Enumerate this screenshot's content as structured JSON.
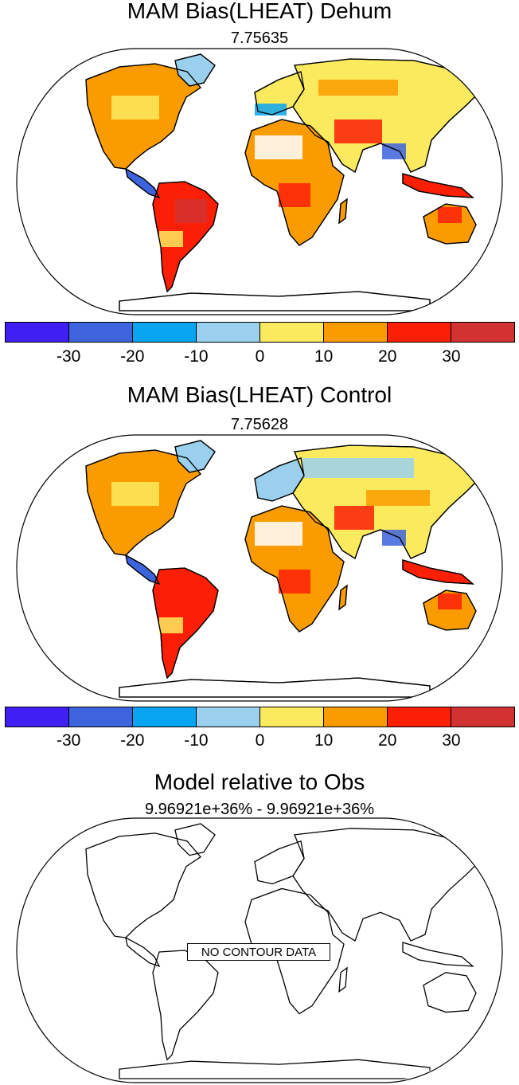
{
  "panels": [
    {
      "title": "MAM Bias(LHEAT) Dehum",
      "subtitle": "7.75635"
    },
    {
      "title": "MAM Bias(LHEAT) Control",
      "subtitle": "7.75628"
    },
    {
      "title": "Model relative to Obs",
      "subtitle": "9.96921e+36% - 9.96921e+36%",
      "message": "NO CONTOUR DATA"
    }
  ],
  "colorbar": {
    "colors": [
      "#3f1ff2",
      "#3d63dd",
      "#0aa5f2",
      "#9ad0ee",
      "#fbea5e",
      "#fa9c00",
      "#fb1f06",
      "#d23232"
    ],
    "labels": [
      "-30",
      "-20",
      "-10",
      "0",
      "10",
      "20",
      "30"
    ]
  }
}
